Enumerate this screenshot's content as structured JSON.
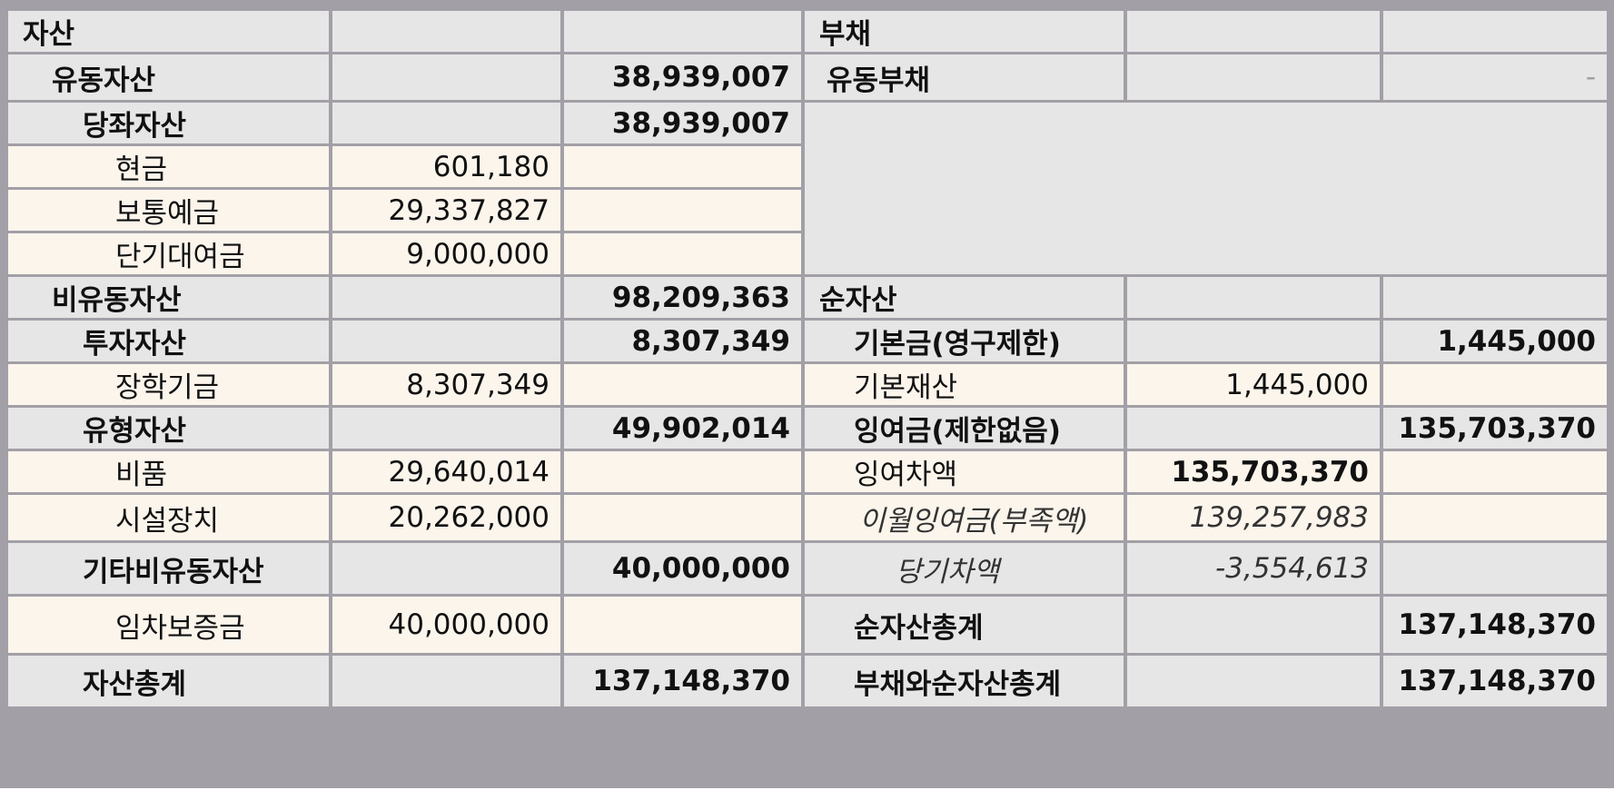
{
  "assets": {
    "header": "자산",
    "current": {
      "label": "유동자산",
      "total": "38,939,007"
    },
    "quick": {
      "label": "당좌자산",
      "total": "38,939,007"
    },
    "cash": {
      "label": "현금",
      "value": "601,180"
    },
    "deposit": {
      "label": "보통예금",
      "value": "29,337,827"
    },
    "shortloan": {
      "label": "단기대여금",
      "value": "9,000,000"
    },
    "noncurrent": {
      "label": "비유동자산",
      "total": "98,209,363"
    },
    "investment": {
      "label": "투자자산",
      "total": "8,307,349"
    },
    "scholarship": {
      "label": "장학기금",
      "value": "8,307,349"
    },
    "tangible": {
      "label": "유형자산",
      "total": "49,902,014"
    },
    "equipment": {
      "label": "비품",
      "value": "29,640,014"
    },
    "facility": {
      "label": "시설장치",
      "value": "20,262,000"
    },
    "other_noncurrent": {
      "label": "기타비유동자산",
      "total": "40,000,000"
    },
    "lease_deposit": {
      "label": "임차보증금",
      "value": "40,000,000"
    },
    "total": {
      "label": "자산총계",
      "value": "137,148,370"
    }
  },
  "liabilities": {
    "header": "부채",
    "current": {
      "label": "유동부채",
      "value": "-"
    }
  },
  "net_assets": {
    "header": "순자산",
    "endowment": {
      "label": "기본금(영구제한)",
      "total": "1,445,000"
    },
    "basic_property": {
      "label": "기본재산",
      "value": "1,445,000"
    },
    "surplus": {
      "label": "잉여금(제한없음)",
      "total": "135,703,370"
    },
    "surplus_balance": {
      "label": "잉여차액",
      "value": "135,703,370"
    },
    "carried": {
      "label": "이월잉여금(부족액)",
      "value": "139,257,983"
    },
    "current_period": {
      "label": "당기차액",
      "value": "-3,554,613"
    },
    "total": {
      "label": "순자산총계",
      "value": "137,148,370"
    },
    "grand_total": {
      "label": "부채와순자산총계",
      "value": "137,148,370"
    }
  }
}
